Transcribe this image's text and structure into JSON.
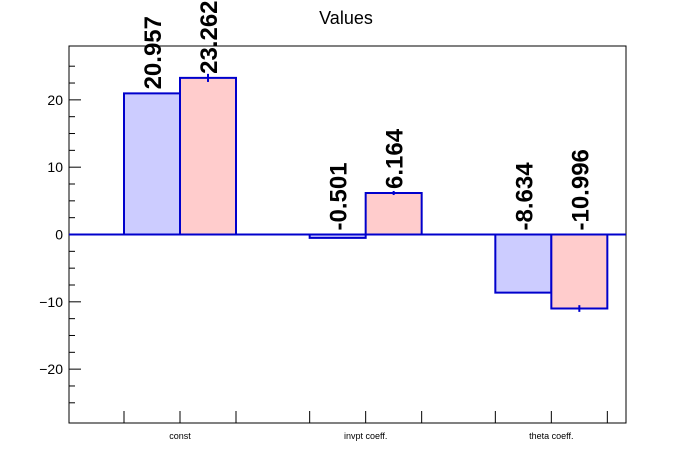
{
  "chart_data": {
    "type": "bar",
    "title": "Values",
    "xlabel": "",
    "ylabel": "",
    "categories": [
      "const",
      "invpt coeff.",
      "theta coeff."
    ],
    "series": [
      {
        "values": [
          20.957,
          -0.501,
          -8.634
        ],
        "labels": [
          "20.957",
          "-0.501",
          "-8.634"
        ],
        "errors": [
          0,
          0,
          0
        ],
        "fill": "#ccccff",
        "stroke": "#0000cc"
      },
      {
        "values": [
          23.262,
          6.164,
          -10.996
        ],
        "labels": [
          "23.262",
          "6.164",
          "-10.996"
        ],
        "errors": [
          0.6,
          0.3,
          0.5
        ],
        "fill": "#ffcccc",
        "stroke": "#0000cc"
      }
    ],
    "ylim": [
      -28,
      28
    ],
    "yticks": [
      -20,
      -10,
      0,
      10,
      20
    ],
    "grid": false,
    "legend": "none"
  }
}
